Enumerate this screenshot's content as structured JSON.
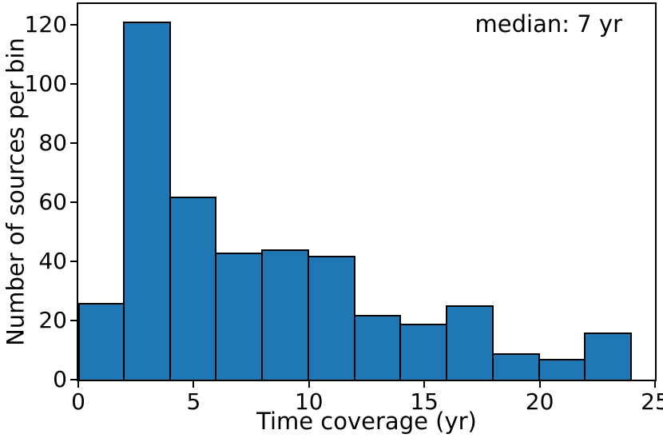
{
  "chart_data": {
    "type": "bar",
    "subtype": "histogram",
    "title": "",
    "xlabel": "Time coverage (yr)",
    "ylabel": "Number of sources per bin",
    "annotation": "median: 7 yr",
    "xlim": [
      0,
      25
    ],
    "ylim": [
      0,
      127
    ],
    "x_ticks": [
      0,
      5,
      10,
      15,
      20,
      25
    ],
    "y_ticks": [
      0,
      20,
      40,
      60,
      80,
      100,
      120
    ],
    "grid": false,
    "legend": "none",
    "bin_width": 2,
    "bins": [
      {
        "range": [
          0,
          2
        ],
        "count": 26
      },
      {
        "range": [
          2,
          4
        ],
        "count": 121
      },
      {
        "range": [
          4,
          6
        ],
        "count": 62
      },
      {
        "range": [
          6,
          8
        ],
        "count": 43
      },
      {
        "range": [
          8,
          10
        ],
        "count": 44
      },
      {
        "range": [
          10,
          12
        ],
        "count": 42
      },
      {
        "range": [
          12,
          14
        ],
        "count": 22
      },
      {
        "range": [
          14,
          16
        ],
        "count": 19
      },
      {
        "range": [
          16,
          18
        ],
        "count": 25
      },
      {
        "range": [
          18,
          20
        ],
        "count": 9
      },
      {
        "range": [
          20,
          22
        ],
        "count": 7
      },
      {
        "range": [
          22,
          24
        ],
        "count": 16
      }
    ],
    "colors": {
      "bar_fill": "#1f77b4",
      "bar_edge": "#000000",
      "spine": "#000000",
      "text": "#000000",
      "background": "#ffffff"
    }
  }
}
